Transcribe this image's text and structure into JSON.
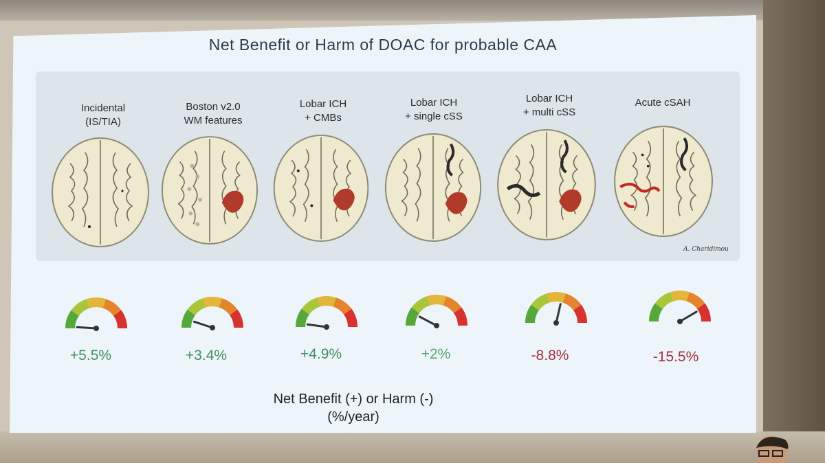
{
  "slide": {
    "title": "Net Benefit or Harm of DOAC for probable CAA",
    "signature": "A. Charidimou",
    "caption_line1": "Net Benefit (+) or Harm (-)",
    "caption_line2": "(%/year)"
  },
  "columns": [
    {
      "line1": "Incidental",
      "line2": "(IS/TIA)",
      "net_benefit": "+5.5%",
      "gauge_value_pct_per_year": 5.5
    },
    {
      "line1": "Boston v2.0",
      "line2": "WM features",
      "net_benefit": "+3.4%",
      "gauge_value_pct_per_year": 3.4
    },
    {
      "line1": "Lobar ICH",
      "line2": "+ CMBs",
      "net_benefit": "+4.9%",
      "gauge_value_pct_per_year": 4.9
    },
    {
      "line1": "Lobar ICH",
      "line2": "+ single cSS",
      "net_benefit": "+2%",
      "gauge_value_pct_per_year": 2
    },
    {
      "line1": "Lobar ICH",
      "line2": "+ multi cSS",
      "net_benefit": "-8.8%",
      "gauge_value_pct_per_year": -8.8
    },
    {
      "line1": "Acute cSAH",
      "line2": "",
      "net_benefit": "-15.5%",
      "gauge_value_pct_per_year": -15.5
    }
  ],
  "colors": {
    "benefit": "#3f8f5e",
    "harm": "#a52e3e",
    "gauge_segments": [
      "#57a83a",
      "#a9c63b",
      "#e3b53a",
      "#e4842d",
      "#d8322e"
    ],
    "hemorrhage": "#b23a2a"
  }
}
